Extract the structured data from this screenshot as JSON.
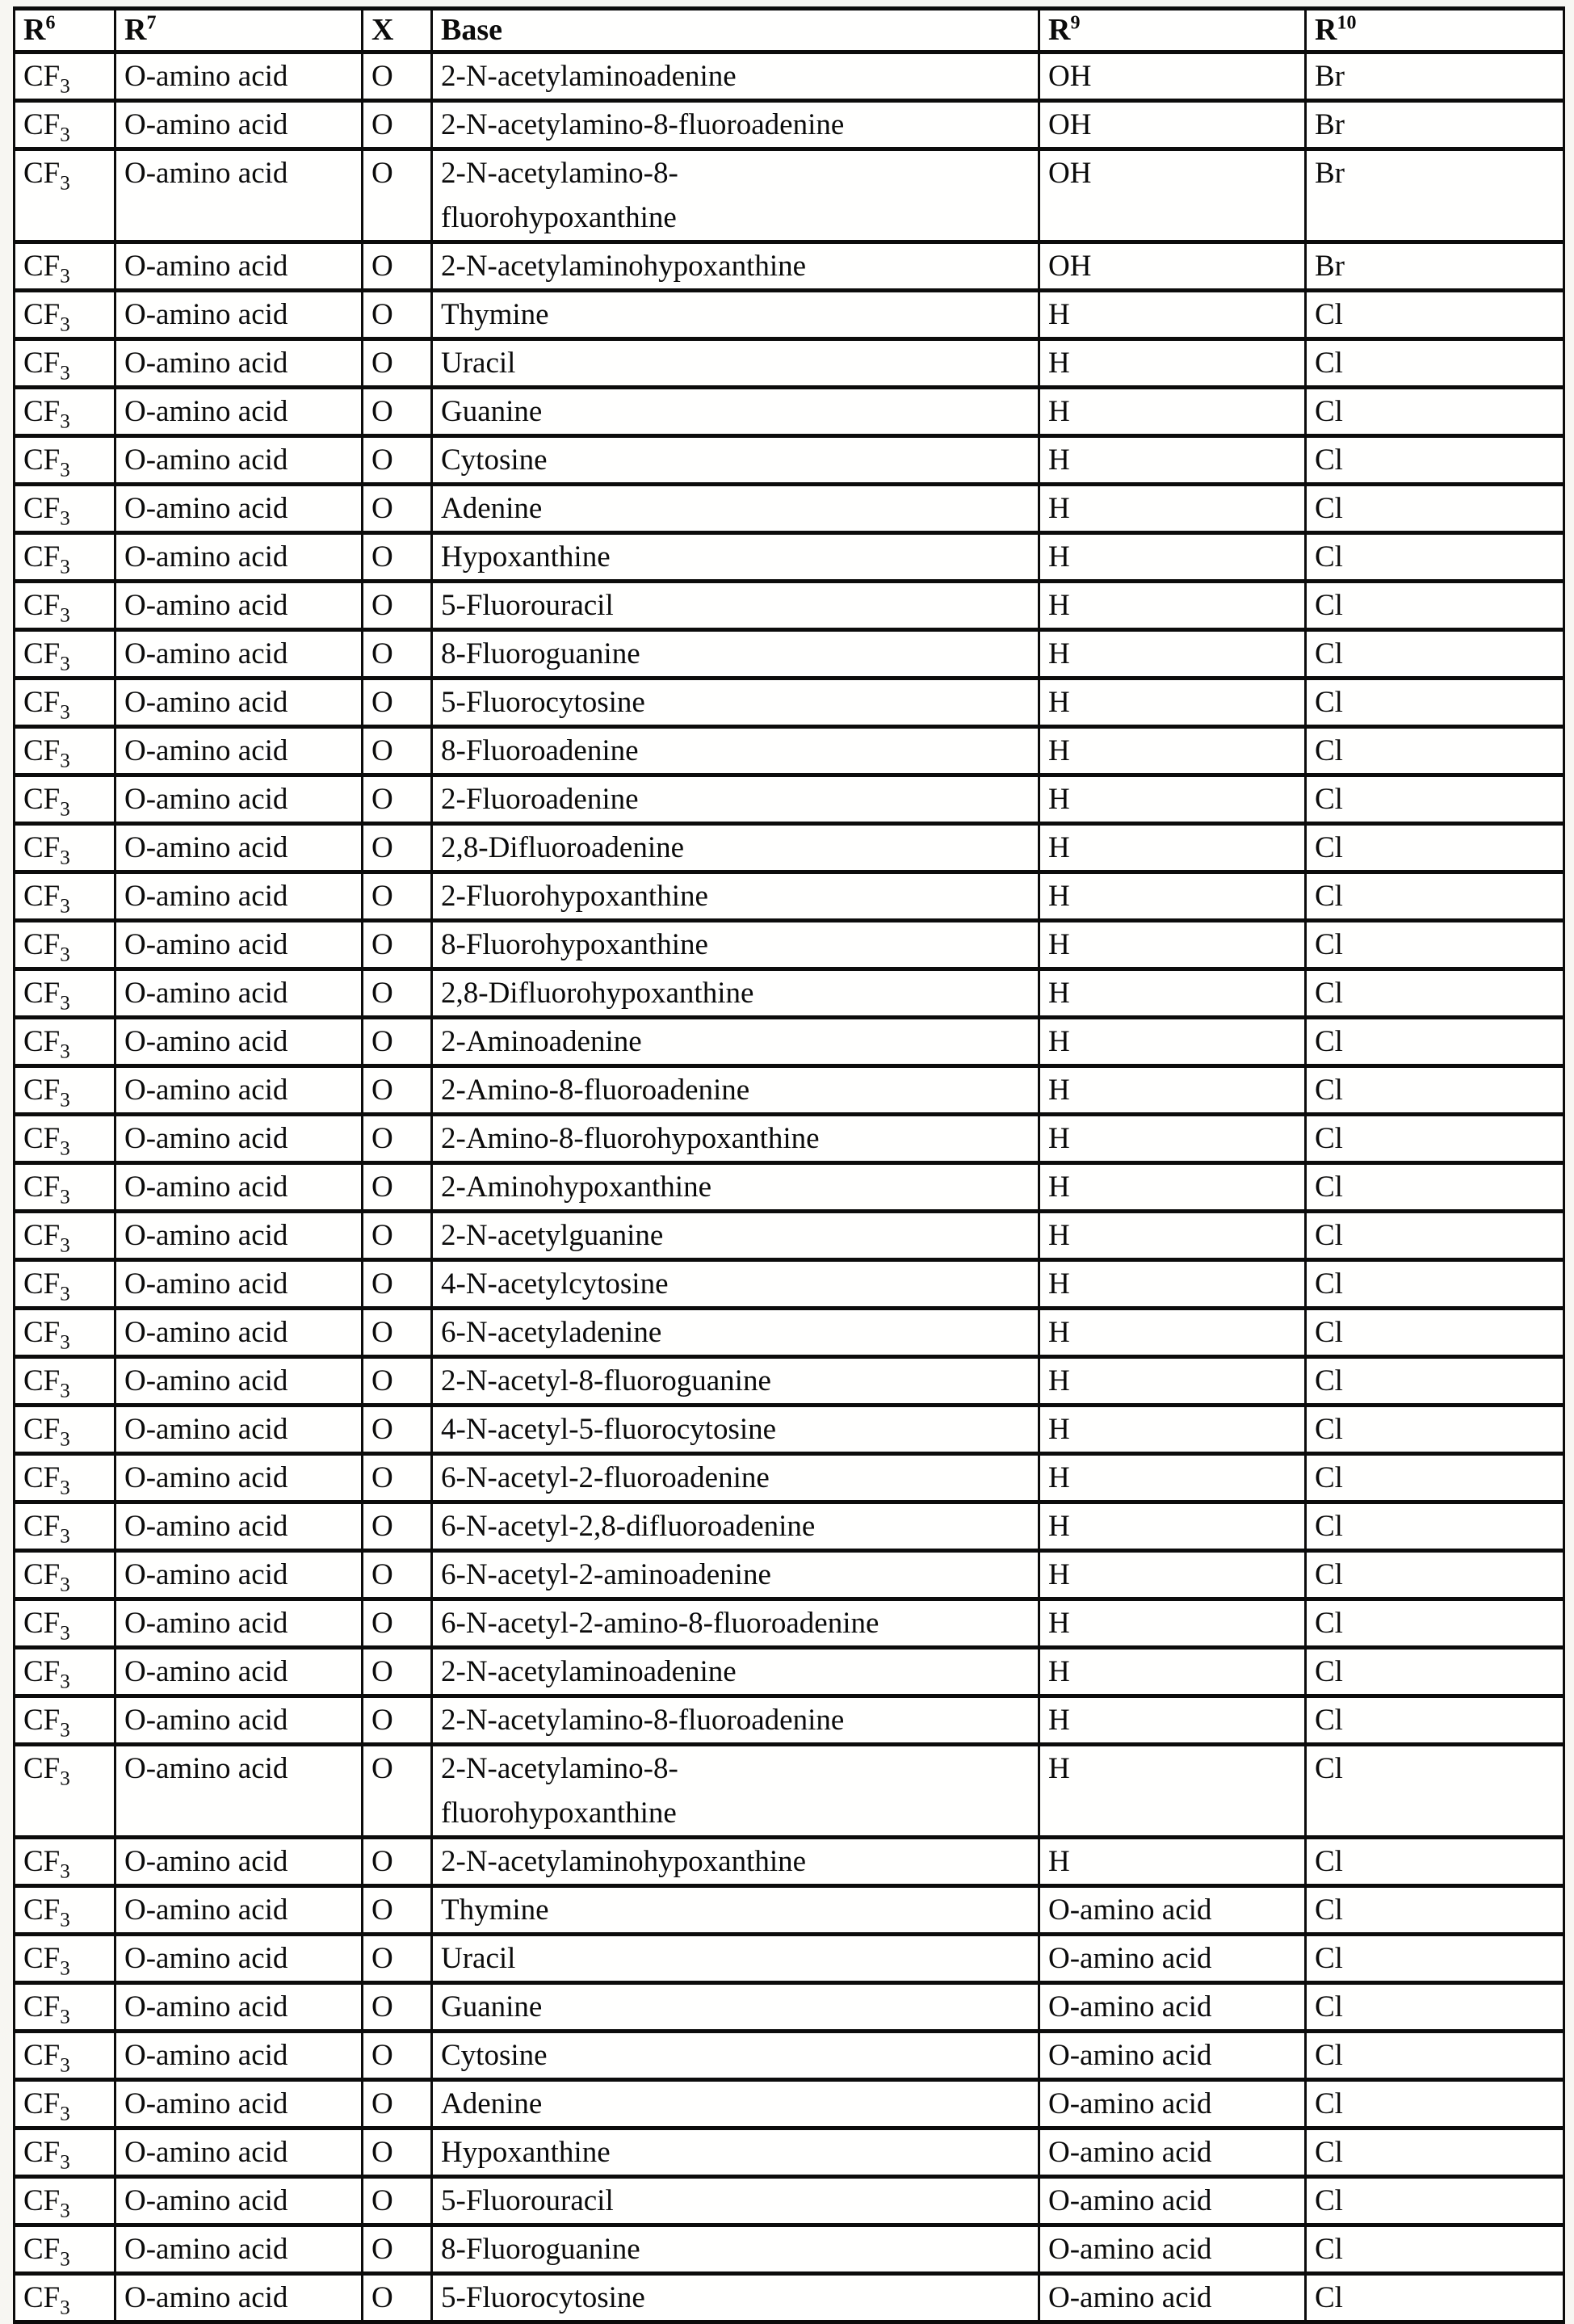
{
  "table": {
    "headers": [
      {
        "label": "R",
        "sup": "6"
      },
      {
        "label": "R",
        "sup": "7"
      },
      {
        "label": "X",
        "sup": ""
      },
      {
        "label": "Base",
        "sup": ""
      },
      {
        "label": "R",
        "sup": "9"
      },
      {
        "label": "R",
        "sup": "10"
      }
    ],
    "constants": {
      "r6_main": "CF",
      "r6_sub": "3",
      "r7": "O-amino acid",
      "x": "O"
    },
    "rows": [
      {
        "base": "2-N-acetylaminoadenine",
        "r9": "OH",
        "r10": "Br"
      },
      {
        "base": "2-N-acetylamino-8-fluoroadenine",
        "r9": "OH",
        "r10": "Br"
      },
      {
        "base": "2-N-acetylamino-8-",
        "base2": "fluorohypoxanthine",
        "r9": "OH",
        "r10": "Br"
      },
      {
        "base": "2-N-acetylaminohypoxanthine",
        "r9": "OH",
        "r10": "Br"
      },
      {
        "base": "Thymine",
        "r9": "H",
        "r10": "Cl"
      },
      {
        "base": "Uracil",
        "r9": "H",
        "r10": "Cl"
      },
      {
        "base": "Guanine",
        "r9": "H",
        "r10": "Cl"
      },
      {
        "base": "Cytosine",
        "r9": "H",
        "r10": "Cl"
      },
      {
        "base": "Adenine",
        "r9": "H",
        "r10": "Cl"
      },
      {
        "base": "Hypoxanthine",
        "r9": "H",
        "r10": "Cl"
      },
      {
        "base": "5-Fluorouracil",
        "r9": "H",
        "r10": "Cl"
      },
      {
        "base": "8-Fluoroguanine",
        "r9": "H",
        "r10": "Cl"
      },
      {
        "base": "5-Fluorocytosine",
        "r9": "H",
        "r10": "Cl"
      },
      {
        "base": "8-Fluoroadenine",
        "r9": "H",
        "r10": "Cl"
      },
      {
        "base": "2-Fluoroadenine",
        "r9": "H",
        "r10": "Cl"
      },
      {
        "base": "2,8-Difluoroadenine",
        "r9": "H",
        "r10": "Cl"
      },
      {
        "base": "2-Fluorohypoxanthine",
        "r9": "H",
        "r10": "Cl"
      },
      {
        "base": "8-Fluorohypoxanthine",
        "r9": "H",
        "r10": "Cl"
      },
      {
        "base": "2,8-Difluorohypoxanthine",
        "r9": "H",
        "r10": "Cl"
      },
      {
        "base": "2-Aminoadenine",
        "r9": "H",
        "r10": "Cl"
      },
      {
        "base": "2-Amino-8-fluoroadenine",
        "r9": "H",
        "r10": "Cl"
      },
      {
        "base": "2-Amino-8-fluorohypoxanthine",
        "r9": "H",
        "r10": "Cl"
      },
      {
        "base": "2-Aminohypoxanthine",
        "r9": "H",
        "r10": "Cl"
      },
      {
        "base": "2-N-acetylguanine",
        "r9": "H",
        "r10": "Cl"
      },
      {
        "base": "4-N-acetylcytosine",
        "r9": "H",
        "r10": "Cl"
      },
      {
        "base": "6-N-acetyladenine",
        "r9": "H",
        "r10": "Cl"
      },
      {
        "base": "2-N-acetyl-8-fluoroguanine",
        "r9": "H",
        "r10": "Cl"
      },
      {
        "base": "4-N-acetyl-5-fluorocytosine",
        "r9": "H",
        "r10": "Cl"
      },
      {
        "base": "6-N-acetyl-2-fluoroadenine",
        "r9": "H",
        "r10": "Cl"
      },
      {
        "base": "6-N-acetyl-2,8-difluoroadenine",
        "r9": "H",
        "r10": "Cl"
      },
      {
        "base": "6-N-acetyl-2-aminoadenine",
        "r9": "H",
        "r10": "Cl"
      },
      {
        "base": "6-N-acetyl-2-amino-8-fluoroadenine",
        "r9": "H",
        "r10": "Cl"
      },
      {
        "base": "2-N-acetylaminoadenine",
        "r9": "H",
        "r10": "Cl"
      },
      {
        "base": "2-N-acetylamino-8-fluoroadenine",
        "r9": "H",
        "r10": "Cl"
      },
      {
        "base": "2-N-acetylamino-8-",
        "base2": "fluorohypoxanthine",
        "r9": "H",
        "r10": "Cl"
      },
      {
        "base": "2-N-acetylaminohypoxanthine",
        "r9": "H",
        "r10": "Cl"
      },
      {
        "base": "Thymine",
        "r9": "O-amino acid",
        "r10": "Cl"
      },
      {
        "base": "Uracil",
        "r9": "O-amino acid",
        "r10": "Cl"
      },
      {
        "base": "Guanine",
        "r9": "O-amino acid",
        "r10": "Cl"
      },
      {
        "base": "Cytosine",
        "r9": "O-amino acid",
        "r10": "Cl"
      },
      {
        "base": "Adenine",
        "r9": "O-amino acid",
        "r10": "Cl"
      },
      {
        "base": "Hypoxanthine",
        "r9": "O-amino acid",
        "r10": "Cl"
      },
      {
        "base": "5-Fluorouracil",
        "r9": "O-amino acid",
        "r10": "Cl"
      },
      {
        "base": "8-Fluoroguanine",
        "r9": "O-amino acid",
        "r10": "Cl"
      },
      {
        "base": "5-Fluorocytosine",
        "r9": "O-amino acid",
        "r10": "Cl"
      }
    ]
  }
}
